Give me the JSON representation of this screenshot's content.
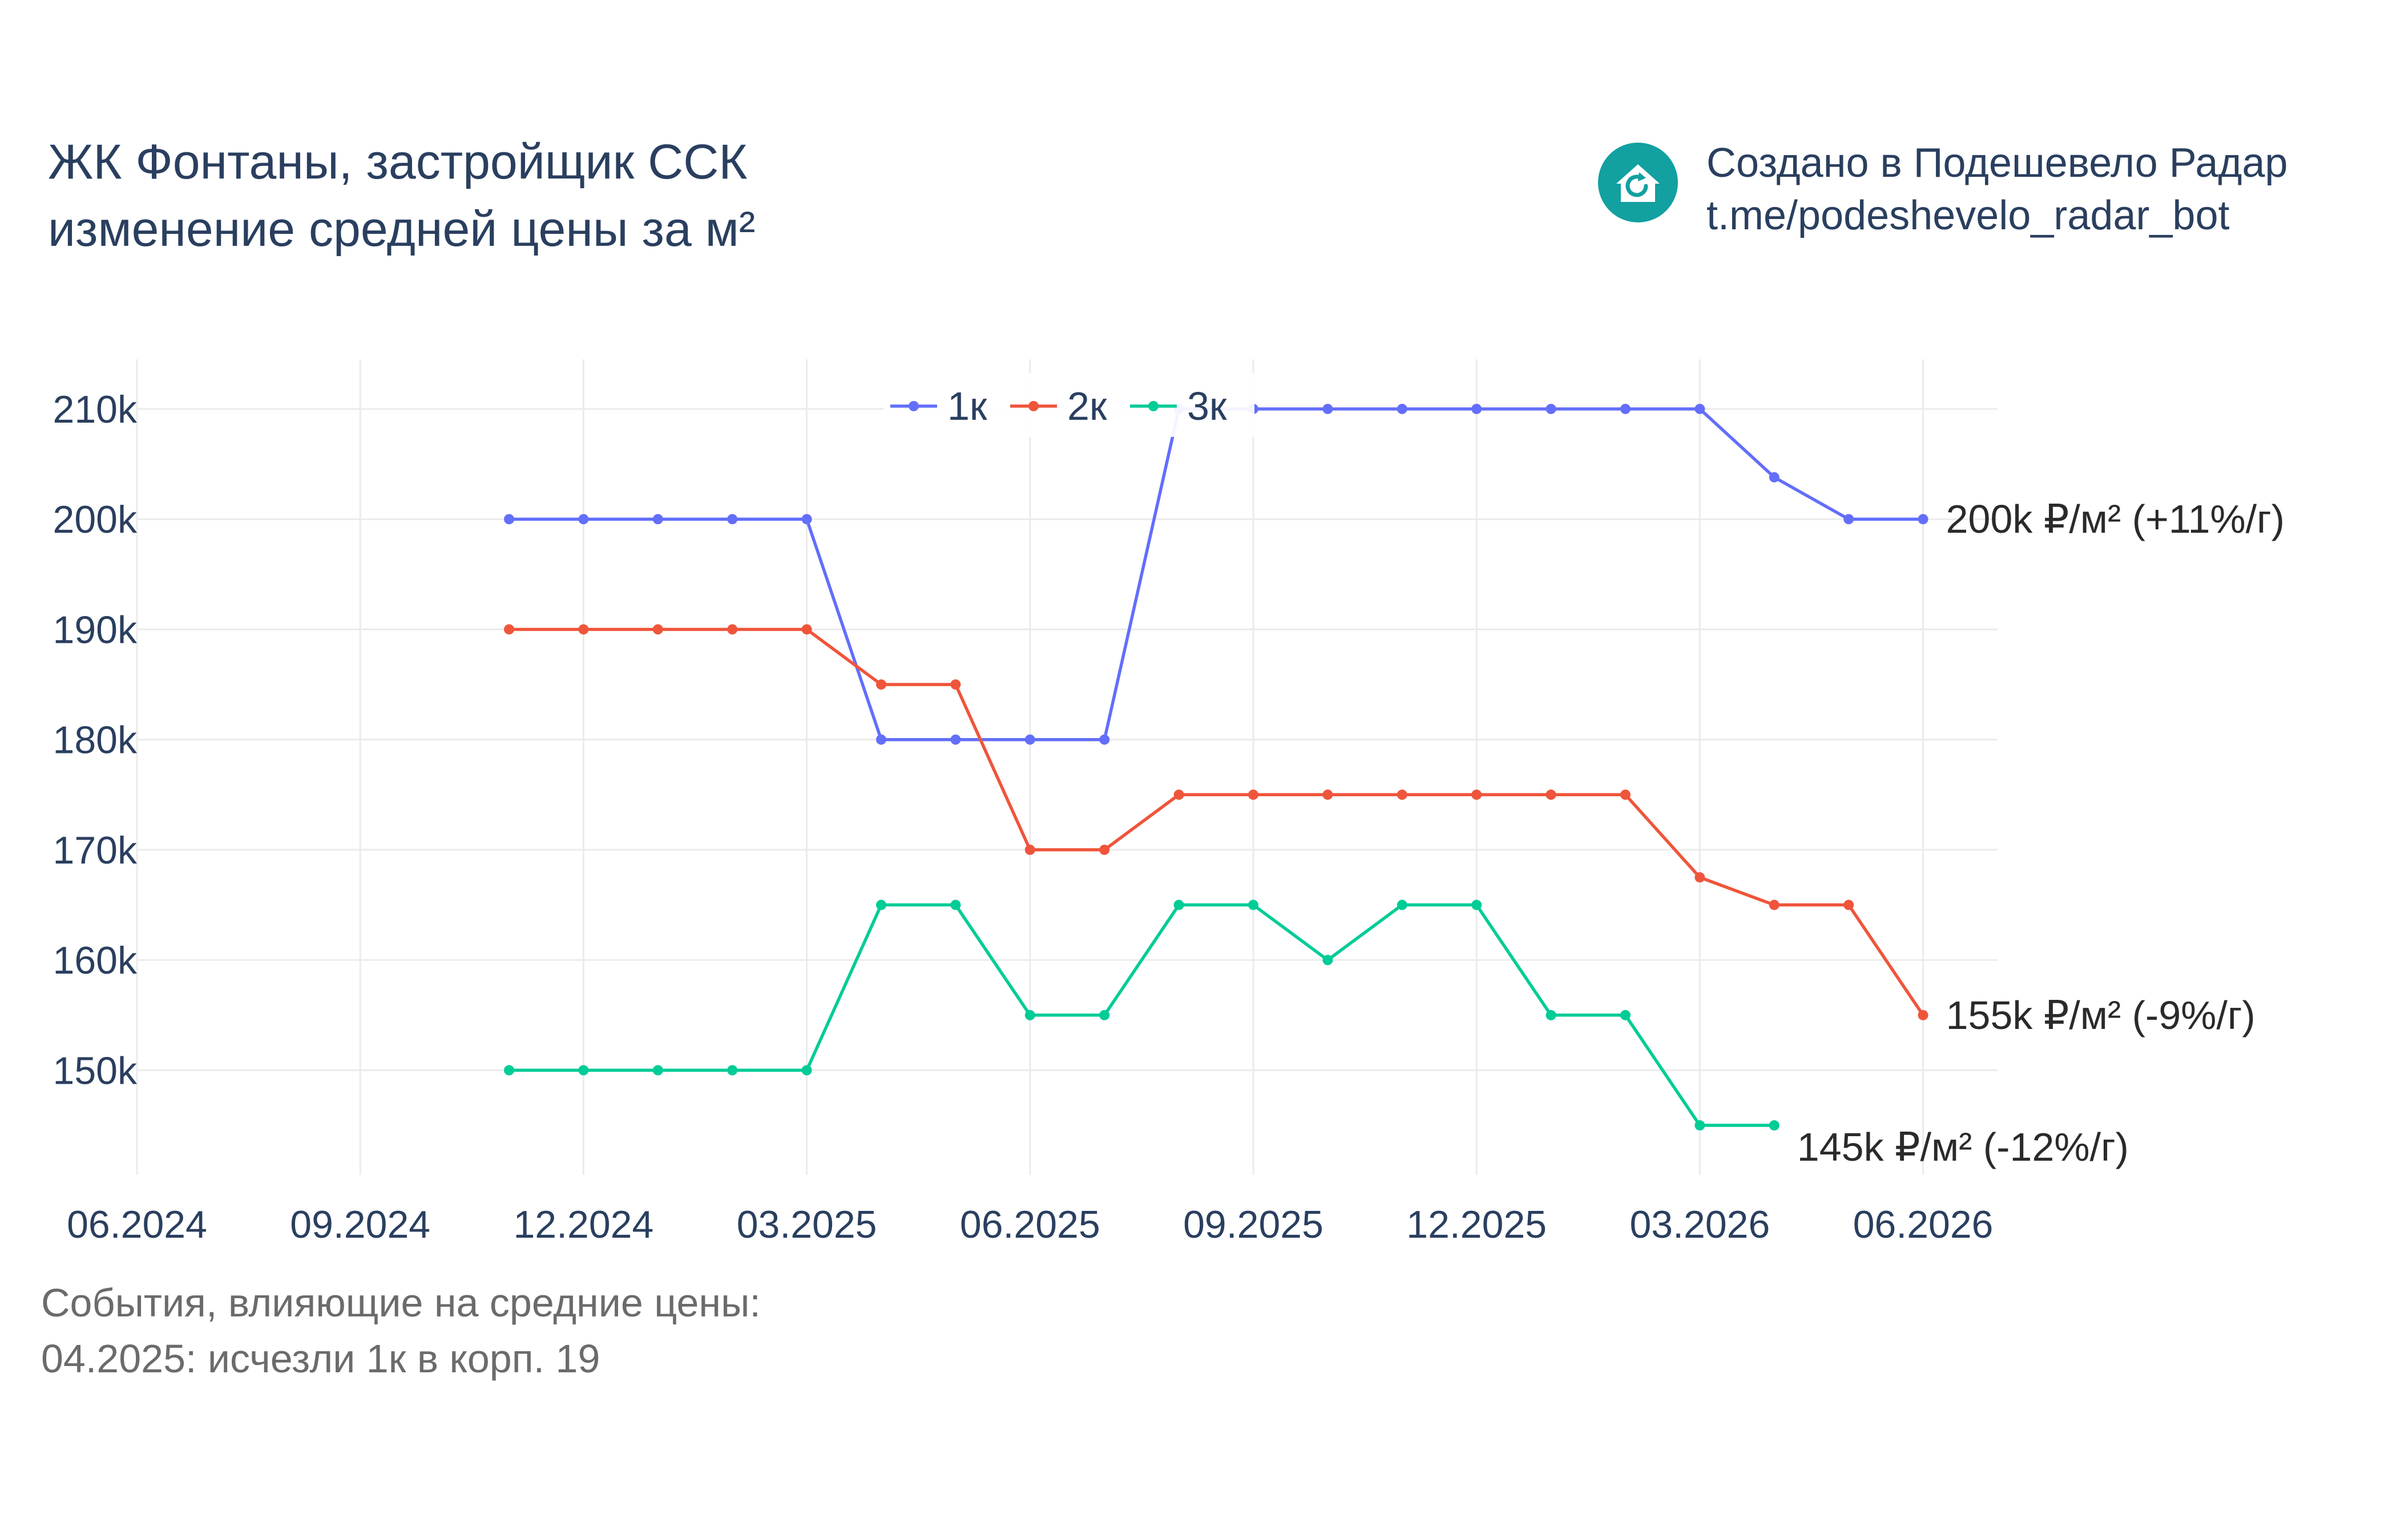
{
  "title": {
    "line1": "ЖК Фонтаны, застройщик ССК",
    "line2": "изменение средней цены за м²"
  },
  "brand": {
    "line1": "Создано в Подешевело Радар",
    "line2": "t.me/podeshevelo_radar_bot",
    "logo_icon": "house-refresh-icon",
    "logo_color": "#12a0a0"
  },
  "events": {
    "heading": "События, влияющие на средние цены:",
    "items": [
      "04.2025: исчезли 1к в корп. 19"
    ]
  },
  "chart_data": {
    "type": "line",
    "x_ticks": [
      "06.2024",
      "09.2024",
      "12.2024",
      "03.2025",
      "06.2025",
      "09.2025",
      "12.2025",
      "03.2026",
      "06.2026"
    ],
    "y_ticks": [
      "150k",
      "160k",
      "170k",
      "180k",
      "190k",
      "200k",
      "210k"
    ],
    "y_tick_values": [
      150000,
      160000,
      170000,
      180000,
      190000,
      200000,
      210000
    ],
    "xlim": [
      "2024-06",
      "2026-07"
    ],
    "ylim": [
      140500,
      214500
    ],
    "grid": true,
    "legend_placement": "top-center",
    "series": [
      {
        "name": "1к",
        "color": "#636efa",
        "points": [
          [
            "2024-11",
            200000
          ],
          [
            "2024-12",
            200000
          ],
          [
            "2025-01",
            200000
          ],
          [
            "2025-02",
            200000
          ],
          [
            "2025-03",
            200000
          ],
          [
            "2025-04",
            180000
          ],
          [
            "2025-05",
            180000
          ],
          [
            "2025-06",
            180000
          ],
          [
            "2025-07",
            180000
          ],
          [
            "2025-08",
            210000
          ],
          [
            "2025-09",
            210000
          ],
          [
            "2025-10",
            210000
          ],
          [
            "2025-11",
            210000
          ],
          [
            "2025-12",
            210000
          ],
          [
            "2026-01",
            210000
          ],
          [
            "2026-02",
            210000
          ],
          [
            "2026-03",
            210000
          ],
          [
            "2026-04",
            203800
          ],
          [
            "2026-05",
            200000
          ],
          [
            "2026-06",
            200000
          ]
        ],
        "end_label": "200k ₽/м² (+11%/г)"
      },
      {
        "name": "2к",
        "color": "#ef553b",
        "points": [
          [
            "2024-11",
            190000
          ],
          [
            "2024-12",
            190000
          ],
          [
            "2025-01",
            190000
          ],
          [
            "2025-02",
            190000
          ],
          [
            "2025-03",
            190000
          ],
          [
            "2025-04",
            185000
          ],
          [
            "2025-05",
            185000
          ],
          [
            "2025-06",
            170000
          ],
          [
            "2025-07",
            170000
          ],
          [
            "2025-08",
            175000
          ],
          [
            "2025-09",
            175000
          ],
          [
            "2025-10",
            175000
          ],
          [
            "2025-11",
            175000
          ],
          [
            "2025-12",
            175000
          ],
          [
            "2026-01",
            175000
          ],
          [
            "2026-02",
            175000
          ],
          [
            "2026-03",
            167500
          ],
          [
            "2026-04",
            165000
          ],
          [
            "2026-05",
            165000
          ],
          [
            "2026-06",
            155000
          ]
        ],
        "end_label": "155k ₽/м² (-9%/г)"
      },
      {
        "name": "3к",
        "color": "#00cc96",
        "points": [
          [
            "2024-11",
            150000
          ],
          [
            "2024-12",
            150000
          ],
          [
            "2025-01",
            150000
          ],
          [
            "2025-02",
            150000
          ],
          [
            "2025-03",
            150000
          ],
          [
            "2025-04",
            165000
          ],
          [
            "2025-05",
            165000
          ],
          [
            "2025-06",
            155000
          ],
          [
            "2025-07",
            155000
          ],
          [
            "2025-08",
            165000
          ],
          [
            "2025-09",
            165000
          ],
          [
            "2025-10",
            160000
          ],
          [
            "2025-11",
            165000
          ],
          [
            "2025-12",
            165000
          ],
          [
            "2026-01",
            155000
          ],
          [
            "2026-02",
            155000
          ],
          [
            "2026-03",
            145000
          ],
          [
            "2026-04",
            145000
          ]
        ],
        "end_label": "145k ₽/м² (-12%/г)"
      }
    ],
    "grid_color": "#ebebeb",
    "tick_color": "#2a3f5f"
  }
}
